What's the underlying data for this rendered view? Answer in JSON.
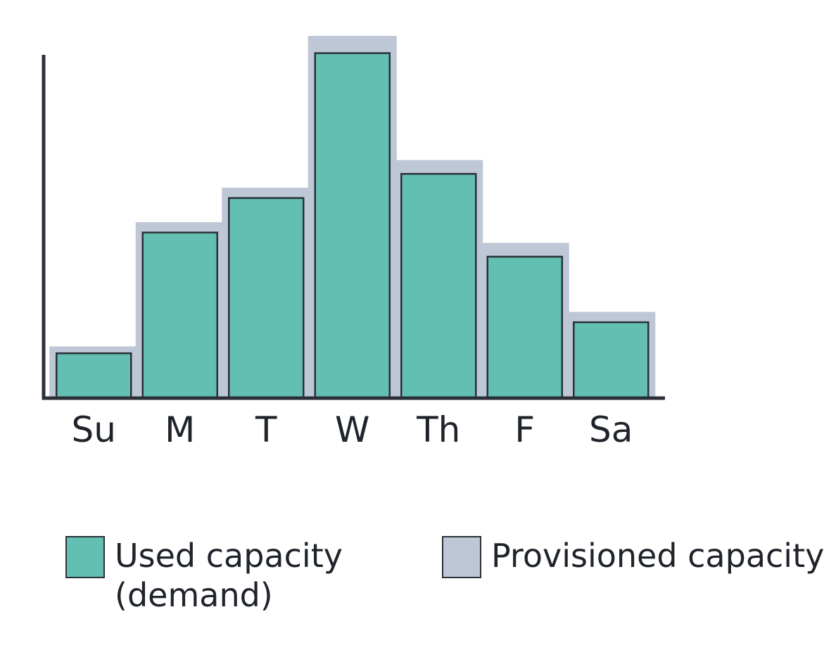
{
  "chart_data": {
    "type": "bar",
    "categories": [
      "Su",
      "M",
      "T",
      "W",
      "Th",
      "F",
      "Sa"
    ],
    "series": [
      {
        "name": "Used capacity\n(demand)",
        "values": [
          13,
          48,
          58,
          100,
          65,
          41,
          22
        ]
      },
      {
        "name": "Provisioned capacity",
        "values": [
          15,
          51,
          61,
          105,
          69,
          45,
          25
        ]
      }
    ],
    "ylim": [
      0,
      105
    ],
    "xlabel": "",
    "ylabel": "",
    "title": "",
    "grid": false,
    "legend_position": "bottom",
    "colors": {
      "used": "#62bfb1",
      "provisioned": "#bec7d6",
      "axis": "#2b3038",
      "text": "#1f232a"
    }
  },
  "legend": {
    "used_label": "Used capacity\n(demand)",
    "provisioned_label": "Provisioned capacity"
  }
}
